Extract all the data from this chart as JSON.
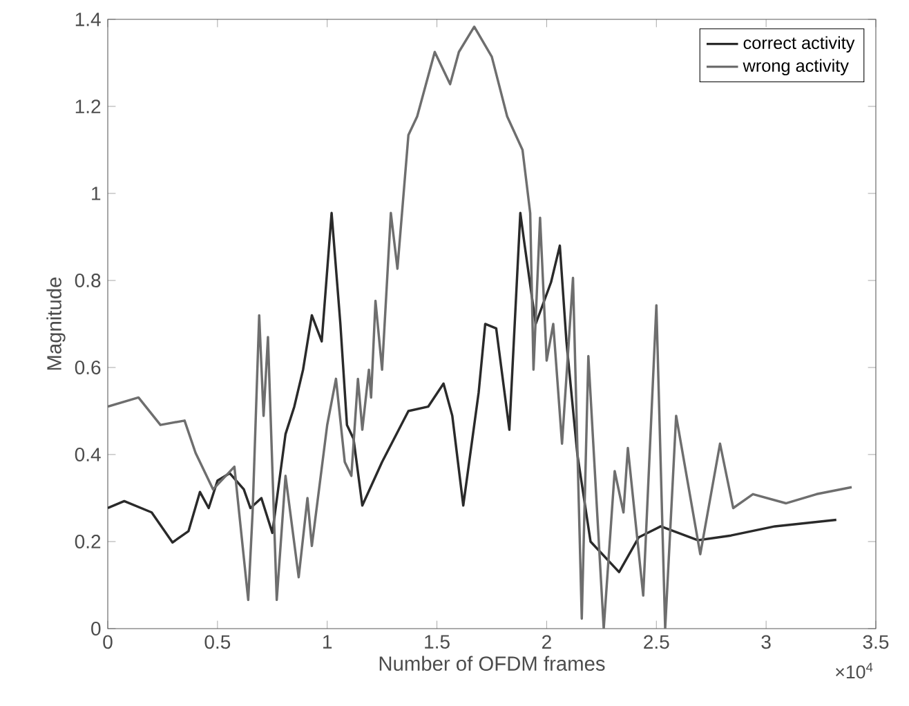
{
  "chart_data": {
    "type": "line",
    "xlabel": "Number of OFDM frames",
    "ylabel": "Magnitude",
    "annotations": [
      "×10$^{4}$"
    ],
    "xlim": [
      0,
      3.5
    ],
    "ylim": [
      0,
      1.4
    ],
    "xticks": [
      0,
      0.5,
      1,
      1.5,
      2,
      2.5,
      3,
      3.5
    ],
    "yticks": [
      0,
      0.2,
      0.4,
      0.6,
      0.8,
      1,
      1.2,
      1.4
    ],
    "grid": false,
    "legend": "top right",
    "marker": "none",
    "line_style": "solid",
    "series": [
      {
        "name": "correct activity",
        "color": "#2a2a2a",
        "x": [
          0,
          0.075,
          0.2,
          0.295,
          0.368,
          0.42,
          0.46,
          0.5,
          0.556,
          0.62,
          0.65,
          0.7,
          0.75,
          0.81,
          0.85,
          0.89,
          0.93,
          0.975,
          1.02,
          1.06,
          1.09,
          1.12,
          1.16,
          1.25,
          1.37,
          1.46,
          1.53,
          1.57,
          1.62,
          1.69,
          1.72,
          1.77,
          1.83,
          1.88,
          1.9,
          1.95,
          2.02,
          2.06,
          2.09,
          2.14,
          2.2,
          2.33,
          2.42,
          2.52,
          2.69,
          2.84,
          3.04,
          3.32
        ],
        "values": [
          0.277,
          0.293,
          0.267,
          0.198,
          0.224,
          0.314,
          0.277,
          0.34,
          0.357,
          0.32,
          0.277,
          0.3,
          0.22,
          0.447,
          0.51,
          0.595,
          0.72,
          0.66,
          0.955,
          0.7,
          0.468,
          0.436,
          0.283,
          0.383,
          0.5,
          0.51,
          0.563,
          0.489,
          0.283,
          0.542,
          0.7,
          0.69,
          0.457,
          0.955,
          0.88,
          0.7,
          0.796,
          0.88,
          0.66,
          0.4,
          0.2,
          0.13,
          0.21,
          0.235,
          0.203,
          0.214,
          0.235,
          0.25
        ]
      },
      {
        "name": "wrong activity",
        "color": "#6e6e6e",
        "x": [
          0,
          0.14,
          0.24,
          0.35,
          0.4,
          0.48,
          0.577,
          0.64,
          0.66,
          0.69,
          0.71,
          0.73,
          0.77,
          0.81,
          0.87,
          0.91,
          0.93,
          1.0,
          1.04,
          1.08,
          1.11,
          1.14,
          1.16,
          1.19,
          1.2,
          1.22,
          1.25,
          1.29,
          1.32,
          1.37,
          1.41,
          1.49,
          1.56,
          1.6,
          1.67,
          1.75,
          1.82,
          1.89,
          1.925,
          1.94,
          1.97,
          2.0,
          2.03,
          2.07,
          2.12,
          2.16,
          2.19,
          2.26,
          2.31,
          2.35,
          2.37,
          2.44,
          2.5,
          2.54,
          2.59,
          2.7,
          2.79,
          2.85,
          2.94,
          3.09,
          3.23,
          3.39
        ],
        "values": [
          0.51,
          0.531,
          0.468,
          0.478,
          0.404,
          0.32,
          0.372,
          0.066,
          0.267,
          0.72,
          0.489,
          0.67,
          0.066,
          0.351,
          0.118,
          0.3,
          0.19,
          0.468,
          0.574,
          0.383,
          0.351,
          0.574,
          0.457,
          0.595,
          0.531,
          0.753,
          0.595,
          0.955,
          0.827,
          1.134,
          1.177,
          1.325,
          1.251,
          1.325,
          1.383,
          1.314,
          1.177,
          1.1,
          0.955,
          0.595,
          0.944,
          0.616,
          0.7,
          0.425,
          0.806,
          0.023,
          0.626,
          0.0,
          0.362,
          0.267,
          0.415,
          0.076,
          0.743,
          0.0,
          0.489,
          0.171,
          0.425,
          0.277,
          0.309,
          0.288,
          0.309,
          0.325
        ]
      }
    ]
  }
}
